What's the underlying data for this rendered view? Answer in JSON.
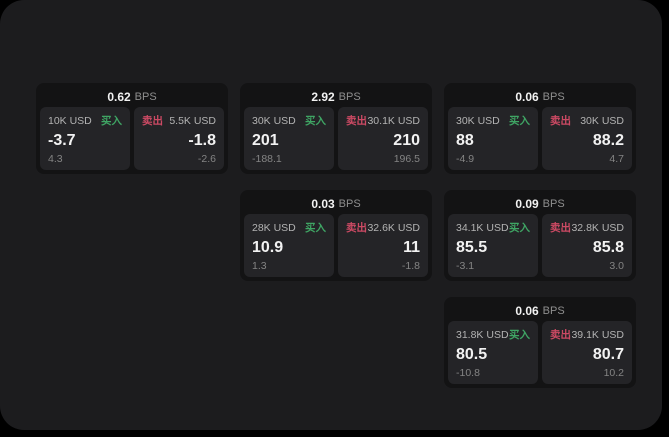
{
  "labels": {
    "buy": "买入",
    "sell": "卖出",
    "bps": "BPS"
  },
  "colors": {
    "background": "#000000",
    "panel": "#1c1c1e",
    "card": "#131314",
    "tile": "#242427",
    "buy_green": "#3fa564",
    "sell_red": "#cd4a64",
    "value_white": "#f2f2f2",
    "label_grey": "#b3b3b3",
    "delta_grey": "#848484"
  },
  "cards": [
    {
      "bps": "0.62",
      "buy": {
        "notional": "10K USD",
        "value": "-3.7",
        "delta": "4.3"
      },
      "sell": {
        "notional": "5.5K USD",
        "value": "-1.8",
        "delta": "-2.6"
      }
    },
    {
      "bps": "2.92",
      "buy": {
        "notional": "30K USD",
        "value": "201",
        "delta": "-188.1"
      },
      "sell": {
        "notional": "30.1K USD",
        "value": "210",
        "delta": "196.5"
      }
    },
    {
      "bps": "0.06",
      "buy": {
        "notional": "30K USD",
        "value": "88",
        "delta": "-4.9"
      },
      "sell": {
        "notional": "30K USD",
        "value": "88.2",
        "delta": "4.7"
      }
    },
    {
      "bps": "0.03",
      "buy": {
        "notional": "28K USD",
        "value": "10.9",
        "delta": "1.3"
      },
      "sell": {
        "notional": "32.6K USD",
        "value": "11",
        "delta": "-1.8"
      }
    },
    {
      "bps": "0.09",
      "buy": {
        "notional": "34.1K USD",
        "value": "85.5",
        "delta": "-3.1"
      },
      "sell": {
        "notional": "32.8K USD",
        "value": "85.8",
        "delta": "3.0"
      }
    },
    {
      "bps": "0.06",
      "buy": {
        "notional": "31.8K USD",
        "value": "80.5",
        "delta": "-10.8"
      },
      "sell": {
        "notional": "39.1K USD",
        "value": "80.7",
        "delta": "10.2"
      }
    }
  ]
}
